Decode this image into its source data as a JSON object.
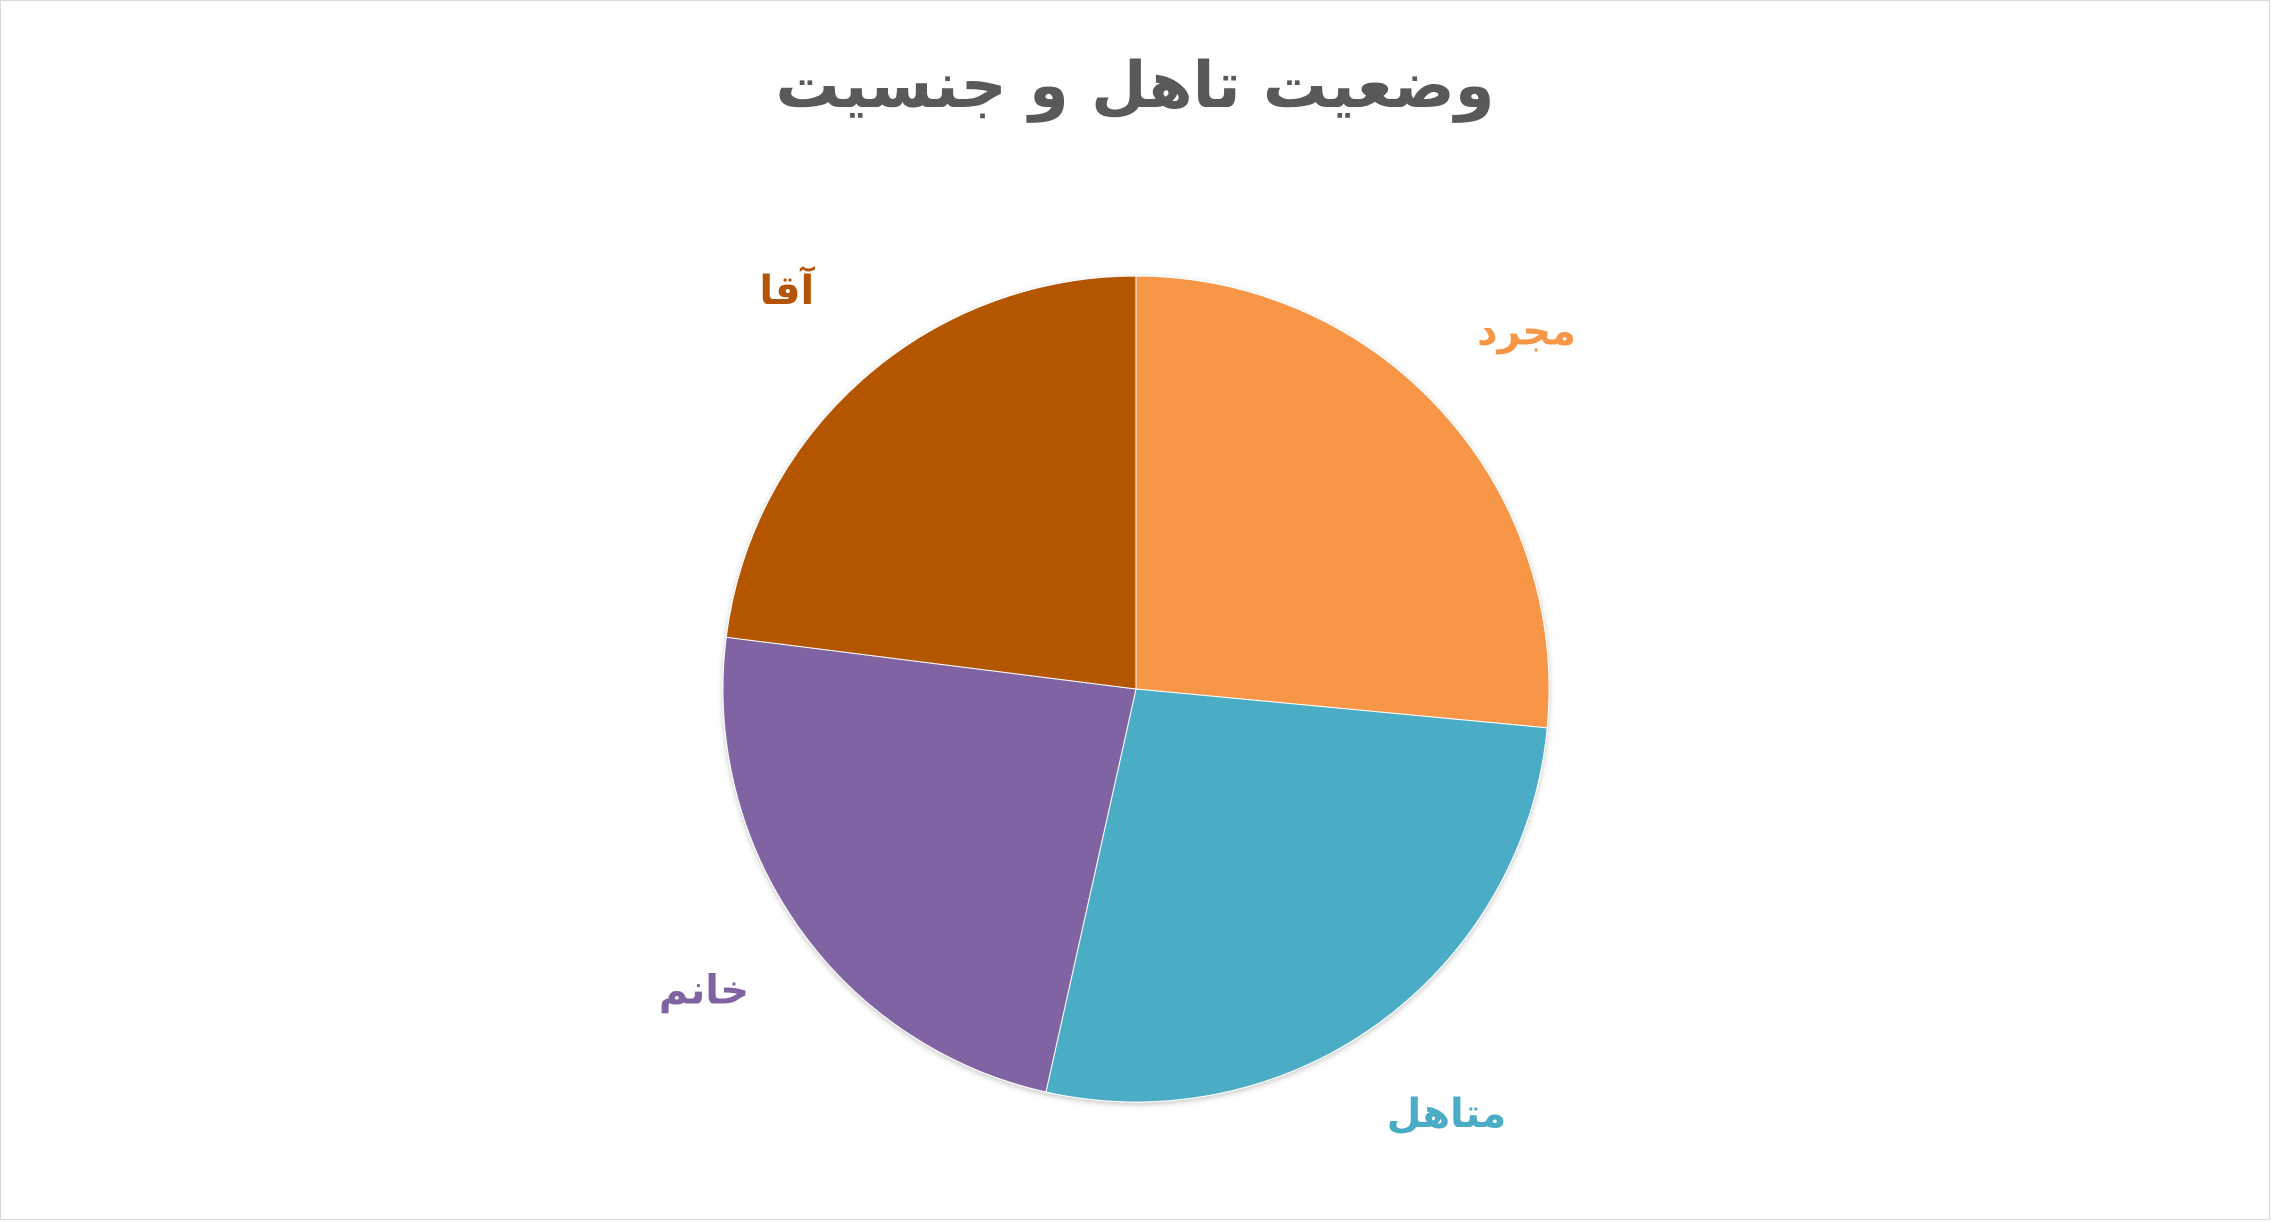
{
  "chart_data": {
    "type": "pie",
    "title": "وضعیت تاهل و جنسیت",
    "categories": [
      "مجرد",
      "متاهل",
      "خانم",
      "آقا"
    ],
    "values": [
      26.5,
      27.0,
      23.5,
      23.0
    ],
    "unit": "percent",
    "colors": [
      "#F79646",
      "#4BACC6",
      "#8064A2",
      "#B45406"
    ],
    "start_angle_deg": 0,
    "direction": "clockwise",
    "legend": "none",
    "data_labels": "category name outside slice"
  }
}
